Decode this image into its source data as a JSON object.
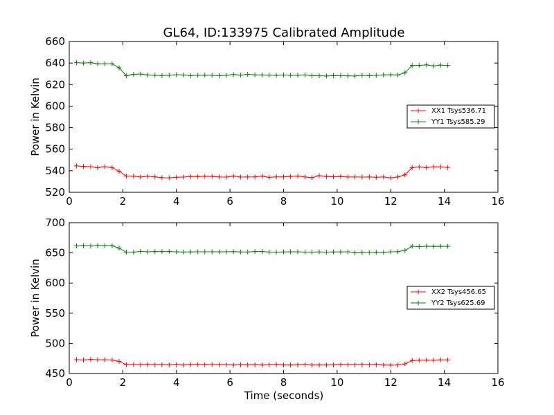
{
  "chart_data": [
    {
      "type": "line",
      "title": "GL64, ID:133975 Calibrated Amplitude",
      "xlabel": "",
      "ylabel": "Power in Kelvin",
      "xlim": [
        0,
        16
      ],
      "ylim": [
        520,
        660
      ],
      "xticks": [
        0,
        2,
        4,
        6,
        8,
        10,
        12,
        14,
        16
      ],
      "yticks": [
        520,
        540,
        560,
        580,
        600,
        620,
        640,
        660
      ],
      "legend_position": "center-right",
      "x": [
        0.27,
        0.53,
        0.8,
        1.06,
        1.33,
        1.6,
        1.86,
        2.13,
        2.4,
        2.66,
        2.93,
        3.2,
        3.46,
        3.73,
        4.0,
        4.26,
        4.53,
        4.8,
        5.06,
        5.33,
        5.6,
        5.86,
        6.13,
        6.4,
        6.66,
        6.93,
        7.2,
        7.46,
        7.73,
        8.0,
        8.26,
        8.53,
        8.8,
        9.06,
        9.33,
        9.6,
        9.86,
        10.13,
        10.4,
        10.66,
        10.93,
        11.2,
        11.46,
        11.73,
        12.0,
        12.26,
        12.53,
        12.8,
        13.06,
        13.33,
        13.6,
        13.86,
        14.13
      ],
      "series": [
        {
          "name": "XX1 Tsys536.71",
          "color": "#ff0000",
          "values": [
            544.5,
            544.0,
            543.8,
            542.8,
            543.8,
            542.9,
            539.5,
            535.0,
            534.9,
            534.2,
            534.8,
            534.3,
            533.6,
            533.5,
            534.0,
            534.1,
            534.7,
            534.6,
            534.8,
            534.7,
            534.2,
            534.1,
            535.0,
            534.1,
            534.2,
            534.3,
            535.0,
            533.9,
            534.3,
            534.3,
            534.7,
            535.0,
            534.2,
            533.6,
            535.4,
            534.6,
            534.4,
            534.6,
            534.2,
            534.2,
            534.1,
            534.2,
            534.0,
            534.2,
            533.4,
            534.2,
            536.2,
            542.9,
            543.5,
            542.9,
            543.6,
            543.5,
            543.0
          ]
        },
        {
          "name": "YY1 Tsys585.29",
          "color": "#008000",
          "values": [
            640.3,
            640.0,
            640.3,
            639.3,
            639.3,
            639.3,
            635.6,
            628.2,
            629.5,
            629.8,
            628.9,
            628.6,
            628.4,
            628.7,
            629.2,
            628.9,
            628.4,
            628.6,
            628.8,
            628.6,
            628.3,
            628.7,
            629.3,
            628.8,
            629.5,
            629.0,
            628.9,
            628.8,
            628.6,
            628.9,
            628.6,
            628.7,
            628.9,
            628.3,
            628.1,
            628.0,
            628.4,
            628.3,
            628.1,
            628.0,
            628.6,
            628.3,
            628.5,
            629.0,
            629.1,
            628.9,
            631.0,
            637.8,
            637.8,
            638.3,
            637.3,
            638.1,
            637.8
          ]
        }
      ]
    },
    {
      "type": "line",
      "title": "",
      "xlabel": "Time (seconds)",
      "ylabel": "Power in Kelvin",
      "xlim": [
        0,
        16
      ],
      "ylim": [
        450,
        700
      ],
      "xticks": [
        0,
        2,
        4,
        6,
        8,
        10,
        12,
        14,
        16
      ],
      "yticks": [
        450,
        500,
        550,
        600,
        650,
        700
      ],
      "legend_position": "center-right",
      "x": [
        0.27,
        0.53,
        0.8,
        1.06,
        1.33,
        1.6,
        1.86,
        2.13,
        2.4,
        2.66,
        2.93,
        3.2,
        3.46,
        3.73,
        4.0,
        4.26,
        4.53,
        4.8,
        5.06,
        5.33,
        5.6,
        5.86,
        6.13,
        6.4,
        6.66,
        6.93,
        7.2,
        7.46,
        7.73,
        8.0,
        8.26,
        8.53,
        8.8,
        9.06,
        9.33,
        9.6,
        9.86,
        10.13,
        10.4,
        10.66,
        10.93,
        11.2,
        11.46,
        11.73,
        12.0,
        12.26,
        12.53,
        12.8,
        13.06,
        13.33,
        13.6,
        13.86,
        14.13
      ],
      "series": [
        {
          "name": "XX2 Tsys456.65",
          "color": "#ff0000",
          "values": [
            473.0,
            472.4,
            473.3,
            472.8,
            472.8,
            472.4,
            470.1,
            464.6,
            464.9,
            464.4,
            464.7,
            464.4,
            464.4,
            464.2,
            464.5,
            464.1,
            464.5,
            464.7,
            464.5,
            464.9,
            464.4,
            464.3,
            464.0,
            464.4,
            464.2,
            464.4,
            464.0,
            464.3,
            464.6,
            464.0,
            464.0,
            464.2,
            464.5,
            464.1,
            464.1,
            464.0,
            464.2,
            464.5,
            464.4,
            464.3,
            464.4,
            464.4,
            464.5,
            464.1,
            463.9,
            464.1,
            465.9,
            471.5,
            471.9,
            472.2,
            472.0,
            472.7,
            472.5
          ]
        },
        {
          "name": "YY2 Tsys625.69",
          "color": "#008000",
          "values": [
            661.5,
            661.9,
            661.5,
            661.8,
            661.7,
            661.9,
            657.8,
            651.2,
            651.1,
            652.5,
            651.9,
            652.2,
            652.3,
            652.2,
            651.7,
            651.4,
            651.6,
            651.8,
            651.8,
            651.8,
            651.7,
            651.9,
            652.1,
            651.6,
            651.4,
            652.2,
            652.2,
            651.4,
            651.1,
            651.5,
            651.7,
            651.9,
            651.3,
            651.2,
            651.5,
            651.3,
            651.5,
            651.5,
            651.9,
            650.0,
            650.6,
            650.7,
            651.0,
            650.9,
            651.8,
            652.0,
            654.2,
            661.0,
            660.4,
            661.0,
            660.7,
            660.8,
            660.9
          ]
        }
      ]
    }
  ]
}
